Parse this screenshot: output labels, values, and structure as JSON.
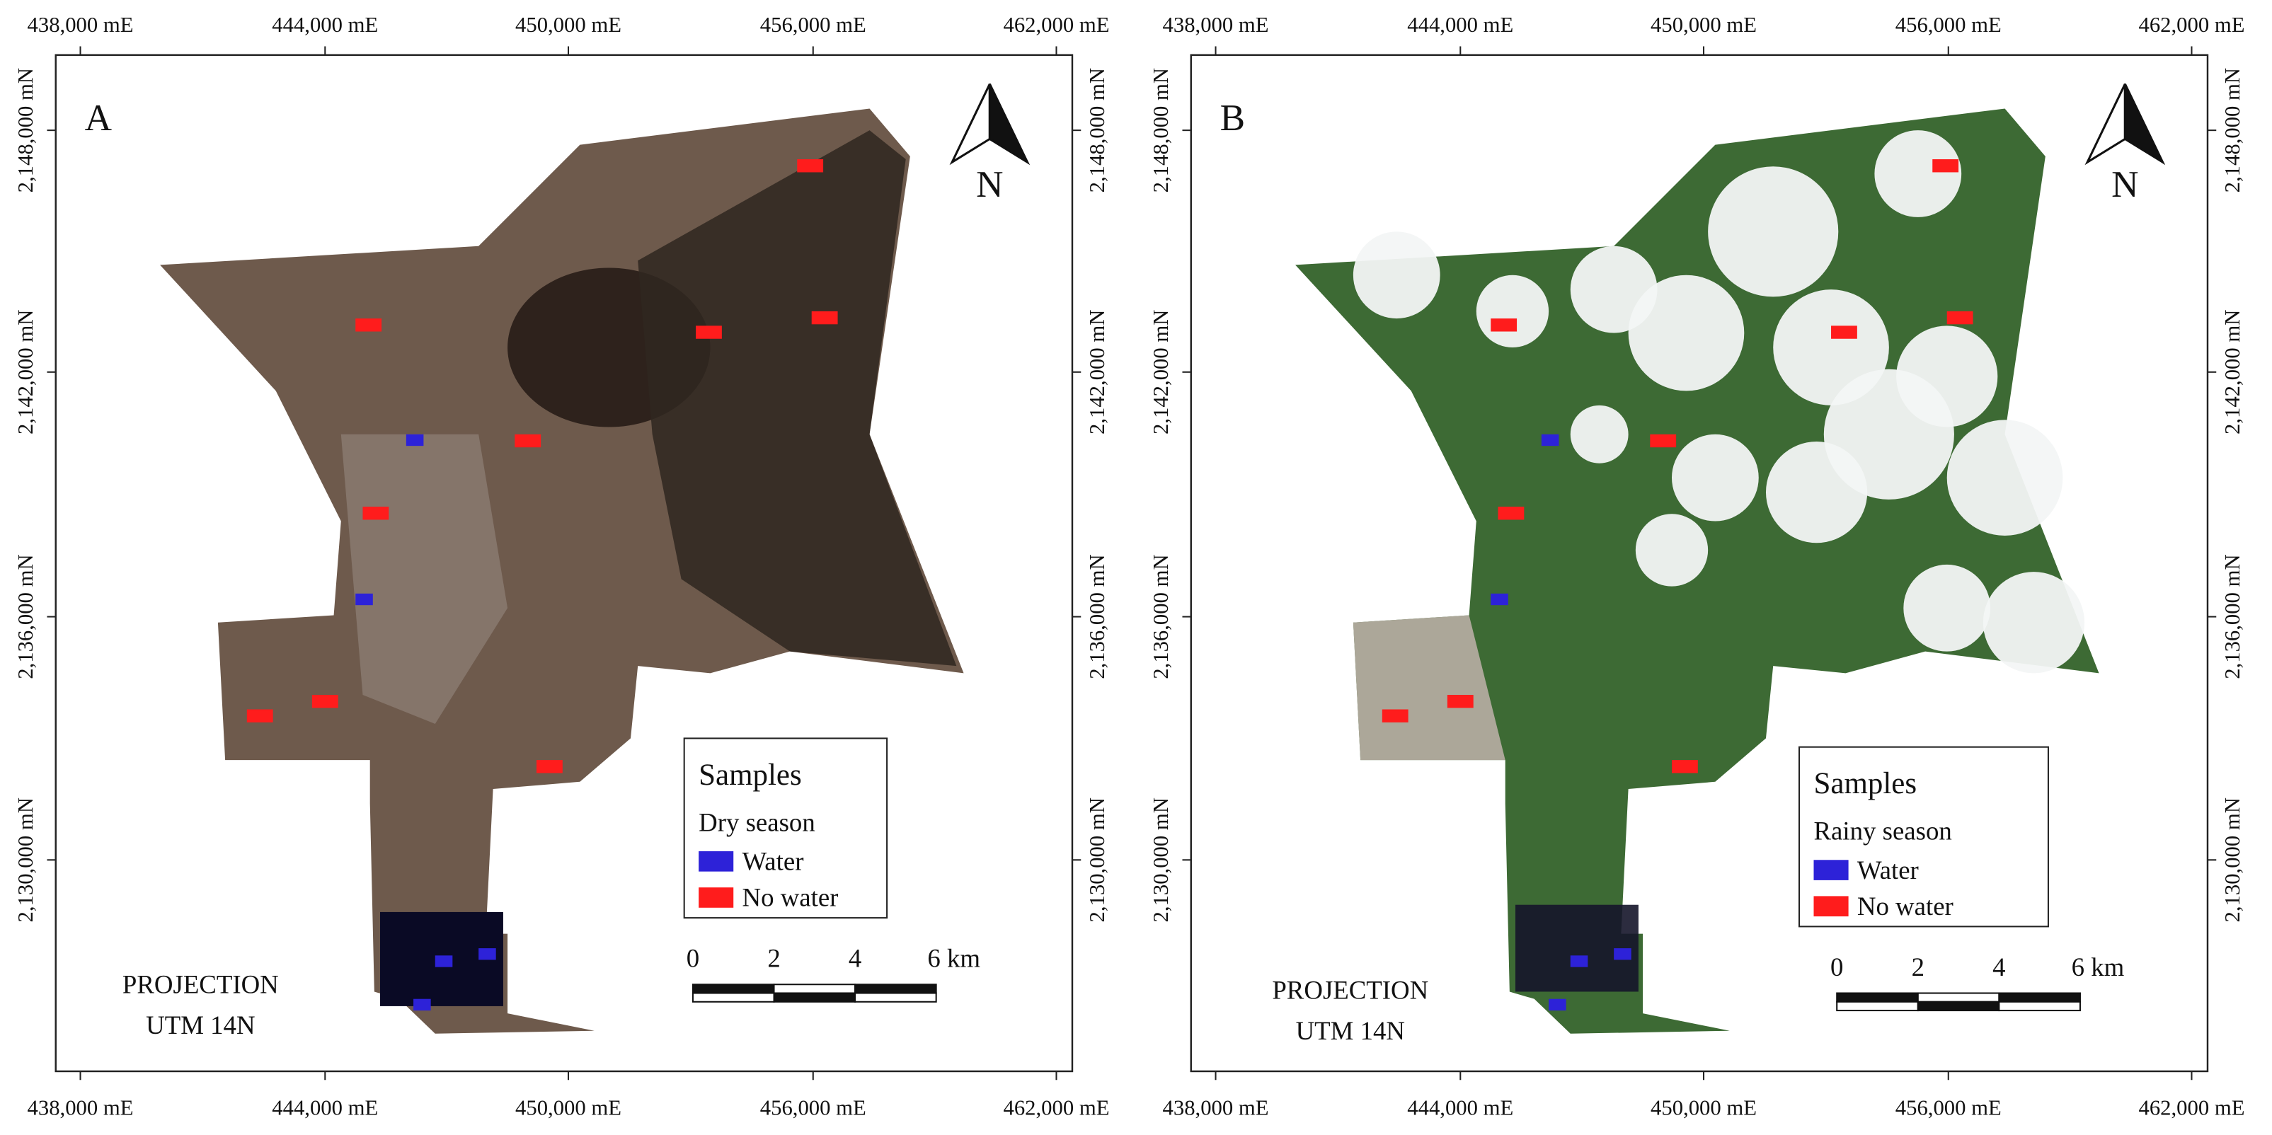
{
  "x_ticks": [
    "438,000 mE",
    "444,000 mE",
    "450,000 mE",
    "456,000 mE",
    "462,000 mE"
  ],
  "y_ticks": [
    "2,148,000 mN",
    "2,142,000 mN",
    "2,136,000 mN",
    "2,130,000 mN"
  ],
  "panels": [
    {
      "label": "A",
      "north": "N",
      "map_tint": "#6e5a4c",
      "legend": {
        "title": "Samples",
        "subtitle": "Dry season",
        "items": [
          {
            "name": "Water",
            "color": "#2d22d8"
          },
          {
            "name": "No water",
            "color": "#ff1c1c"
          }
        ]
      },
      "scale_bar": [
        "0",
        "2",
        "4",
        "6 km"
      ],
      "projection": [
        "PROJECTION",
        "UTM 14N"
      ]
    },
    {
      "label": "B",
      "north": "N",
      "map_tint": "#3d6a34",
      "legend": {
        "title": "Samples",
        "subtitle": "Rainy season",
        "items": [
          {
            "name": "Water",
            "color": "#2d22d8"
          },
          {
            "name": "No water",
            "color": "#ff1c1c"
          }
        ]
      },
      "scale_bar": [
        "0",
        "2",
        "4",
        "6 km"
      ],
      "projection": [
        "PROJECTION",
        "UTM 14N"
      ]
    }
  ]
}
